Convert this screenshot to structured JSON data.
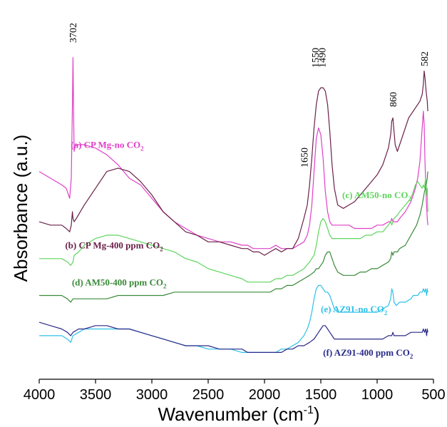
{
  "chart_data": {
    "type": "line",
    "xlabel": "Wavenumber (cm",
    "xlabel_sup": "-1",
    "xlabel_end": ")",
    "ylabel": "Absorbance (a.u.)",
    "xlim": [
      4000,
      500
    ],
    "ylim": [
      0,
      100
    ],
    "x_reversed": true,
    "y_ticks_shown": false,
    "grid": false,
    "x_ticks": [
      4000,
      3500,
      3000,
      2500,
      2000,
      1500,
      1000,
      500
    ],
    "x_tick_labels": [
      "4000",
      "3500",
      "3000",
      "2500",
      "2000",
      "1500",
      "1000",
      "500"
    ],
    "peak_labels": [
      {
        "text": "3702",
        "x": 3702
      },
      {
        "text": "1650",
        "x": 1650
      },
      {
        "text": "1550",
        "x": 1550
      },
      {
        "text": "1490",
        "x": 1490
      },
      {
        "text": "860",
        "x": 860
      },
      {
        "text": "582",
        "x": 582
      }
    ],
    "series": [
      {
        "name": "(a) CP Mg-no CO",
        "name_sub": "2",
        "color": "#e040c8",
        "x": [
          4000,
          3900,
          3800,
          3760,
          3730,
          3715,
          3705,
          3700,
          3695,
          3690,
          3680,
          3650,
          3600,
          3500,
          3400,
          3300,
          3200,
          3100,
          3000,
          2900,
          2800,
          2700,
          2600,
          2500,
          2400,
          2300,
          2200,
          2150,
          2100,
          2050,
          2000,
          1950,
          1900,
          1850,
          1800,
          1750,
          1700,
          1650,
          1620,
          1600,
          1580,
          1560,
          1540,
          1520,
          1500,
          1480,
          1460,
          1440,
          1420,
          1400,
          1380,
          1350,
          1300,
          1250,
          1200,
          1150,
          1100,
          1050,
          1000,
          950,
          900,
          880,
          870,
          860,
          850,
          840,
          820,
          800,
          750,
          700,
          680,
          660,
          640,
          620,
          600,
          590,
          582,
          575,
          565,
          555,
          550
        ],
        "y": [
          62,
          60,
          58,
          57,
          54,
          60,
          82,
          96,
          80,
          68,
          70,
          70,
          70,
          69,
          67,
          64,
          60,
          58,
          54,
          50,
          47,
          45,
          43,
          42,
          41,
          41,
          40,
          40,
          39,
          39,
          39,
          39,
          40,
          39,
          39,
          39,
          40,
          41,
          43,
          46,
          52,
          62,
          72,
          75,
          73,
          66,
          56,
          50,
          47,
          46,
          46,
          46,
          46,
          46,
          45,
          45,
          45,
          45,
          46,
          46,
          47,
          47,
          48,
          47,
          47,
          47,
          47,
          48,
          50,
          53,
          55,
          57,
          60,
          65,
          75,
          80,
          76,
          65,
          55,
          48,
          46
        ]
      },
      {
        "name": "(b) CP Mg-400 ppm CO",
        "name_sub": "2",
        "color": "#6a2048",
        "x": [
          4000,
          3900,
          3800,
          3760,
          3730,
          3715,
          3705,
          3700,
          3690,
          3670,
          3600,
          3500,
          3400,
          3300,
          3200,
          3100,
          3000,
          2900,
          2800,
          2700,
          2600,
          2500,
          2400,
          2300,
          2200,
          2150,
          2100,
          2050,
          2000,
          1950,
          1900,
          1850,
          1800,
          1750,
          1700,
          1650,
          1620,
          1600,
          1580,
          1560,
          1540,
          1520,
          1500,
          1480,
          1460,
          1440,
          1420,
          1400,
          1380,
          1350,
          1300,
          1250,
          1200,
          1150,
          1100,
          1050,
          1000,
          950,
          900,
          880,
          870,
          860,
          850,
          840,
          820,
          800,
          780,
          750,
          720,
          700,
          680,
          660,
          640,
          620,
          600,
          590,
          582,
          575,
          565,
          555,
          550
        ],
        "y": [
          47,
          46,
          46,
          45,
          44,
          46,
          50,
          48,
          47,
          48,
          52,
          57,
          62,
          63,
          62,
          59,
          55,
          50,
          47,
          44,
          43,
          41,
          41,
          40,
          39,
          39,
          38,
          38,
          37,
          38,
          39,
          38,
          39,
          39,
          42,
          48,
          52,
          58,
          66,
          75,
          82,
          86,
          87,
          87,
          86,
          82,
          74,
          64,
          57,
          52,
          51,
          52,
          53,
          55,
          57,
          59,
          61,
          64,
          69,
          73,
          77,
          78,
          74,
          70,
          68,
          70,
          72,
          75,
          78,
          79,
          80,
          81,
          82,
          83,
          85,
          88,
          92,
          90,
          86,
          83,
          80
        ]
      },
      {
        "name": "(c) AM50-no CO",
        "name_sub": "2",
        "color": "#5dd55d",
        "x": [
          4000,
          3900,
          3800,
          3750,
          3720,
          3700,
          3690,
          3650,
          3600,
          3500,
          3400,
          3300,
          3200,
          3100,
          3000,
          2900,
          2800,
          2700,
          2600,
          2500,
          2400,
          2300,
          2200,
          2150,
          2100,
          2050,
          2000,
          1950,
          1900,
          1850,
          1800,
          1750,
          1700,
          1650,
          1600,
          1560,
          1540,
          1520,
          1500,
          1480,
          1460,
          1440,
          1420,
          1400,
          1380,
          1350,
          1300,
          1250,
          1200,
          1150,
          1100,
          1050,
          1000,
          950,
          900,
          880,
          870,
          860,
          850,
          820,
          800,
          750,
          700,
          680,
          660,
          640,
          620,
          600,
          590,
          580,
          570,
          560,
          555,
          550
        ],
        "y": [
          36,
          36,
          36,
          35,
          34,
          35,
          37,
          38,
          40,
          42,
          43,
          43,
          42,
          41,
          40,
          39,
          38,
          36,
          35,
          33,
          32,
          31,
          30,
          29,
          29,
          29,
          29,
          29,
          30,
          30,
          31,
          31,
          32,
          33,
          35,
          37,
          40,
          44,
          47,
          48,
          47,
          45,
          43,
          42,
          42,
          42,
          42,
          42,
          42,
          42,
          43,
          43,
          44,
          44,
          46,
          47,
          46,
          47,
          48,
          49,
          50,
          52,
          54,
          56,
          58,
          59,
          58,
          57,
          58,
          57,
          60,
          55,
          57,
          50
        ]
      },
      {
        "name": "(d) AM50-400 ppm CO",
        "name_sub": "2",
        "color": "#3a8a3a",
        "x": [
          4000,
          3900,
          3800,
          3750,
          3720,
          3700,
          3650,
          3600,
          3500,
          3400,
          3300,
          3200,
          3100,
          3000,
          2900,
          2800,
          2700,
          2600,
          2500,
          2400,
          2300,
          2200,
          2150,
          2100,
          2050,
          2000,
          1950,
          1900,
          1850,
          1800,
          1750,
          1700,
          1650,
          1600,
          1560,
          1540,
          1520,
          1500,
          1480,
          1460,
          1440,
          1420,
          1400,
          1380,
          1350,
          1300,
          1250,
          1200,
          1150,
          1100,
          1050,
          1000,
          950,
          900,
          880,
          870,
          860,
          850,
          820,
          800,
          750,
          700,
          650,
          620,
          600,
          590,
          580,
          570,
          560,
          555,
          550
        ],
        "y": [
          25,
          25,
          25,
          24,
          23,
          24,
          24,
          24,
          24,
          24,
          25,
          25,
          25,
          25,
          25,
          26,
          26,
          26,
          26,
          26,
          26,
          26,
          26,
          26,
          26,
          26,
          26,
          27,
          27,
          28,
          28,
          29,
          30,
          31,
          32,
          33,
          33,
          34,
          35,
          37,
          38,
          38,
          36,
          34,
          32,
          31,
          31,
          31,
          32,
          32,
          33,
          33,
          34,
          35,
          36,
          38,
          37,
          38,
          38,
          39,
          40,
          43,
          46,
          49,
          52,
          54,
          56,
          57,
          59,
          60,
          62
        ]
      },
      {
        "name": "(e) AZ91-no CO",
        "name_sub": "2",
        "color": "#2fc0e8",
        "x": [
          4000,
          3900,
          3800,
          3750,
          3720,
          3700,
          3650,
          3600,
          3500,
          3400,
          3300,
          3200,
          3100,
          3000,
          2900,
          2800,
          2700,
          2600,
          2500,
          2400,
          2300,
          2200,
          2150,
          2100,
          2050,
          2000,
          1950,
          1900,
          1850,
          1800,
          1750,
          1700,
          1650,
          1620,
          1600,
          1580,
          1560,
          1540,
          1520,
          1500,
          1480,
          1460,
          1440,
          1420,
          1400,
          1380,
          1350,
          1300,
          1250,
          1200,
          1150,
          1100,
          1050,
          1000,
          950,
          900,
          880,
          870,
          860,
          850,
          830,
          800,
          750,
          700,
          680,
          660,
          640,
          620,
          600,
          590,
          580,
          570,
          560,
          555,
          550
        ],
        "y": [
          13,
          13,
          13,
          12,
          11,
          13,
          14,
          15,
          15,
          15,
          15,
          15,
          14,
          13,
          12,
          11,
          10,
          10,
          9,
          9,
          9,
          8,
          8,
          8,
          8,
          8,
          8,
          8,
          9,
          9,
          10,
          11,
          13,
          15,
          17,
          20,
          24,
          27,
          28,
          28,
          27,
          26,
          26,
          25,
          23,
          21,
          20,
          20,
          20,
          20,
          20,
          20,
          20,
          20,
          21,
          22,
          24,
          27,
          26,
          23,
          22,
          23,
          23,
          24,
          25,
          25,
          25,
          26,
          26,
          27,
          26,
          27,
          25,
          27,
          26
        ]
      },
      {
        "name": "(f) AZ91-400 ppm CO",
        "name_sub": "2",
        "color": "#2a2a8a",
        "x": [
          4000,
          3900,
          3800,
          3750,
          3720,
          3700,
          3650,
          3600,
          3500,
          3400,
          3300,
          3200,
          3100,
          3000,
          2900,
          2800,
          2700,
          2600,
          2500,
          2400,
          2300,
          2200,
          2150,
          2100,
          2050,
          2000,
          1950,
          1900,
          1850,
          1800,
          1750,
          1700,
          1650,
          1600,
          1560,
          1540,
          1520,
          1500,
          1480,
          1460,
          1440,
          1420,
          1400,
          1380,
          1350,
          1300,
          1250,
          1200,
          1150,
          1100,
          1050,
          1000,
          950,
          900,
          870,
          860,
          850,
          800,
          750,
          700,
          650,
          600,
          590,
          580,
          570,
          560,
          555,
          550
        ],
        "y": [
          17,
          16,
          15,
          14,
          13,
          14,
          15,
          15,
          16,
          16,
          15,
          15,
          14,
          13,
          12,
          11,
          10,
          10,
          10,
          9,
          9,
          9,
          8,
          8,
          8,
          8,
          8,
          8,
          8,
          9,
          9,
          10,
          10,
          11,
          12,
          13,
          14,
          15,
          16,
          16,
          15,
          14,
          13,
          12,
          12,
          12,
          12,
          12,
          12,
          12,
          12,
          12,
          12,
          13,
          13,
          14,
          13,
          13,
          13,
          14,
          14,
          14,
          15,
          14,
          15,
          13,
          15,
          14
        ]
      }
    ],
    "series_labels": [
      {
        "series": 0,
        "x": 3720,
        "y": 69,
        "anchor": "start"
      },
      {
        "series": 1,
        "x": 3770,
        "y": 39,
        "anchor": "start"
      },
      {
        "series": 2,
        "x": 1310,
        "y": 54,
        "anchor": "start"
      },
      {
        "series": 3,
        "x": 3710,
        "y": 28,
        "anchor": "start"
      },
      {
        "series": 4,
        "x": 1500,
        "y": 20,
        "anchor": "start"
      },
      {
        "series": 5,
        "x": 1480,
        "y": 7,
        "anchor": "start"
      }
    ]
  }
}
